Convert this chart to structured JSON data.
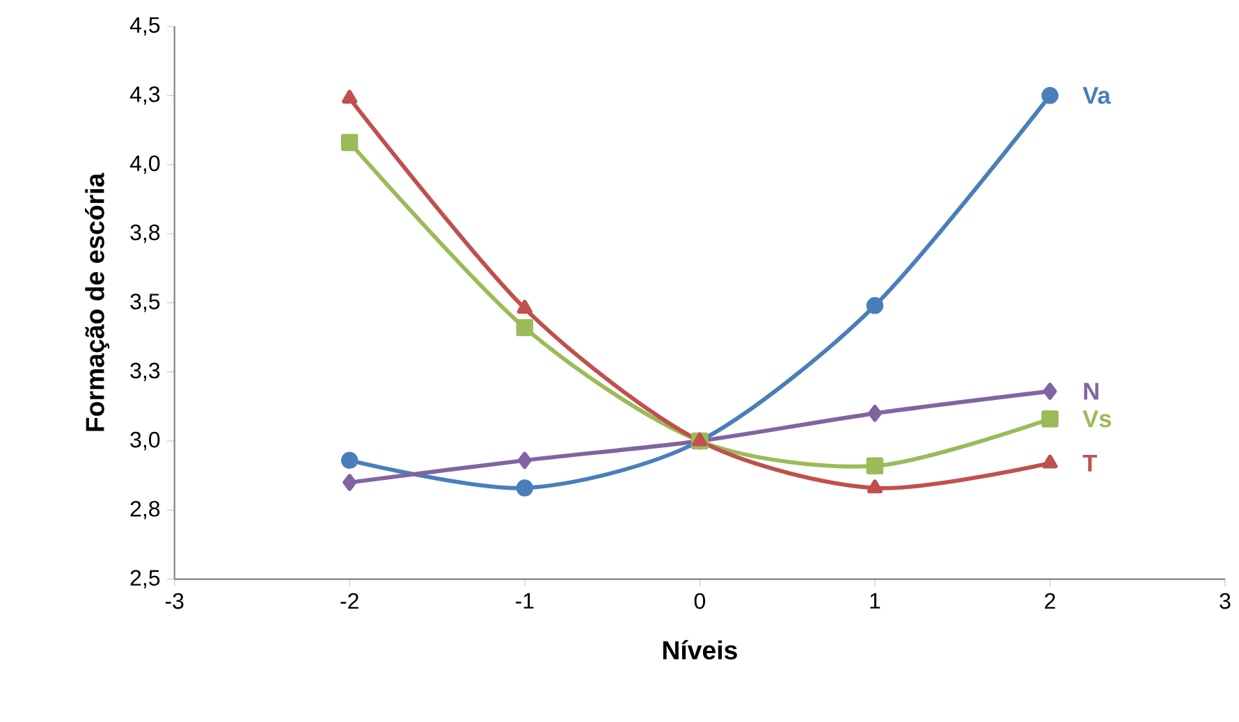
{
  "chart_data": {
    "type": "line",
    "xlabel": "Níveis",
    "ylabel": "Formação de escória",
    "x": [
      -2,
      -1,
      0,
      1,
      2
    ],
    "series": [
      {
        "name": "Va",
        "color": "#4a7ebb",
        "marker": "circle",
        "values": [
          2.93,
          2.83,
          3.0,
          3.49,
          4.25
        ]
      },
      {
        "name": "N",
        "color": "#8064a2",
        "marker": "diamond",
        "values": [
          2.85,
          2.93,
          3.0,
          3.1,
          3.18
        ]
      },
      {
        "name": "Vs",
        "color": "#9bbb59",
        "marker": "square",
        "values": [
          4.08,
          3.41,
          3.0,
          2.91,
          3.08
        ]
      },
      {
        "name": "T",
        "color": "#c0504d",
        "marker": "triangle",
        "values": [
          4.24,
          3.48,
          3.0,
          2.83,
          2.92
        ]
      }
    ],
    "xlim": [
      -3,
      3
    ],
    "xticks": [
      -3,
      -2,
      -1,
      0,
      1,
      2,
      3
    ],
    "ylim": [
      2.5,
      4.5
    ],
    "yticks": [
      {
        "value": 2.5,
        "label": "2,5"
      },
      {
        "value": 2.75,
        "label": "2,8"
      },
      {
        "value": 3.0,
        "label": "3,0"
      },
      {
        "value": 3.25,
        "label": "3,3"
      },
      {
        "value": 3.5,
        "label": "3,5"
      },
      {
        "value": 3.75,
        "label": "3,8"
      },
      {
        "value": 4.0,
        "label": "4,0"
      },
      {
        "value": 4.25,
        "label": "4,3"
      },
      {
        "value": 4.5,
        "label": "4,5"
      }
    ],
    "grid": false
  }
}
